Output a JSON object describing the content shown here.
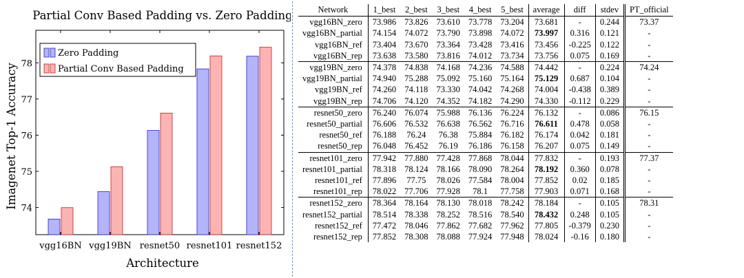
{
  "chart_data": {
    "type": "bar",
    "title": "Partial Conv Based Padding vs. Zero Padding",
    "xlabel": "Architecture",
    "ylabel": "Imagenet Top-1 Accuracy",
    "categories": [
      "vgg16BN",
      "vgg19BN",
      "resnet50",
      "resnet101",
      "resnet152"
    ],
    "ylim": [
      73.25,
      78.9
    ],
    "yticks": [
      74,
      75,
      76,
      77,
      78
    ],
    "legend_position": "top-left",
    "series": [
      {
        "name": "Zero Padding",
        "color": "#b4b4fa",
        "stroke": "#2525c8",
        "values": [
          73.681,
          74.442,
          76.132,
          77.832,
          78.184
        ]
      },
      {
        "name": "Partial Conv Based Padding",
        "color": "#fab4b4",
        "stroke": "#c81e1e",
        "values": [
          73.997,
          75.129,
          76.611,
          78.192,
          78.432
        ]
      }
    ]
  },
  "table": {
    "headers": [
      "Network",
      "1_best",
      "2_best",
      "3_best",
      "4_best",
      "5_best",
      "average",
      "diff",
      "stdev",
      "PT_official"
    ],
    "groups": [
      [
        [
          "vgg16BN_zero",
          "73.986",
          "73.826",
          "73.610",
          "73.778",
          "73.204",
          "73.681",
          "-",
          "0.244",
          "73.37"
        ],
        [
          "vgg16BN_partial",
          "74.154",
          "74.072",
          "73.790",
          "73.898",
          "74.072",
          "73.997",
          "0.316",
          "0.121",
          "-"
        ],
        [
          "vgg16BN_ref",
          "73.404",
          "73.670",
          "73.364",
          "73.428",
          "73.416",
          "73.456",
          "-0.225",
          "0.122",
          "-"
        ],
        [
          "vgg16BN_rep",
          "73.638",
          "73.580",
          "73.816",
          "74.012",
          "73.734",
          "73.756",
          "0.075",
          "0.169",
          "-"
        ]
      ],
      [
        [
          "vgg19BN_zero",
          "74.378",
          "74.838",
          "74.168",
          "74.236",
          "74.588",
          "74.442",
          "-",
          "0.224",
          "74.24"
        ],
        [
          "vgg19BN_partial",
          "74.940",
          "75.288",
          "75.092",
          "75.160",
          "75.164",
          "75.129",
          "0.687",
          "0.104",
          "-"
        ],
        [
          "vgg19BN_ref",
          "74.260",
          "74.118",
          "73.330",
          "74.042",
          "74.268",
          "74.004",
          "-0.438",
          "0.389",
          "-"
        ],
        [
          "vgg19BN_rep",
          "74.706",
          "74.120",
          "74.352",
          "74.182",
          "74.290",
          "74.330",
          "-0.112",
          "0.229",
          "-"
        ]
      ],
      [
        [
          "resnet50_zero",
          "76.240",
          "76.074",
          "75.988",
          "76.136",
          "76.224",
          "76.132",
          "-",
          "0.086",
          "76.15"
        ],
        [
          "resnet50_partial",
          "76.606",
          "76.532",
          "76.638",
          "76.562",
          "76.716",
          "76.611",
          "0.478",
          "0.058",
          "-"
        ],
        [
          "resnet50_ref",
          "76.188",
          "76.24",
          "76.38",
          "75.884",
          "76.182",
          "76.174",
          "0.042",
          "0.181",
          "-"
        ],
        [
          "resnet50_rep",
          "76.048",
          "76.452",
          "76.19",
          "76.186",
          "76.158",
          "76.207",
          "0.075",
          "0.149",
          "-"
        ]
      ],
      [
        [
          "resnet101_zero",
          "77.942",
          "77.880",
          "77.428",
          "77.868",
          "78.044",
          "77.832",
          "-",
          "0.193",
          "77.37"
        ],
        [
          "resnet101_partial",
          "78.318",
          "78.124",
          "78.166",
          "78.090",
          "78.264",
          "78.192",
          "0.360",
          "0.078",
          "-"
        ],
        [
          "resnet101_ref",
          "77.896",
          "77.75",
          "78.026",
          "77.584",
          "78.004",
          "77.852",
          "0.02",
          "0.185",
          "-"
        ],
        [
          "resnet101_rep",
          "78.022",
          "77.706",
          "77.928",
          "78.1",
          "77.758",
          "77.903",
          "0.071",
          "0.168",
          "-"
        ]
      ],
      [
        [
          "resnet152_zero",
          "78.364",
          "78.164",
          "78.130",
          "78.018",
          "78.242",
          "78.184",
          "-",
          "0.105",
          "78.31"
        ],
        [
          "resnet152_partial",
          "78.514",
          "78.338",
          "78.252",
          "78.516",
          "78.540",
          "78.432",
          "0.248",
          "0.105",
          "-"
        ],
        [
          "resnet152_ref",
          "77.472",
          "78.046",
          "77.862",
          "77.682",
          "77.962",
          "77.805",
          "-0.379",
          "0.230",
          "-"
        ],
        [
          "resnet152_rep",
          "77.852",
          "78.308",
          "78.088",
          "77.924",
          "77.948",
          "78.024",
          "-0.16",
          "0.180",
          "-"
        ]
      ]
    ]
  }
}
